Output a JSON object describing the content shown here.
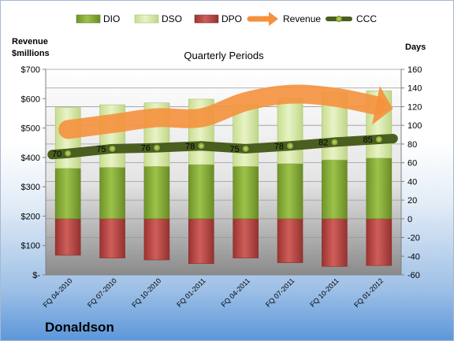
{
  "chart_data": {
    "type": "bar",
    "title": "Quarterly Periods",
    "company": "Donaldson",
    "left_axis_title": [
      "Revenue",
      "$millions"
    ],
    "right_axis_title": "Days",
    "categories": [
      "FQ 04-2010",
      "FQ 07-2010",
      "FQ 10-2010",
      "FQ 01-2011",
      "FQ 04-2011",
      "FQ 07-2011",
      "FQ 10-2011",
      "FQ 01-2012"
    ],
    "left_ticks": [
      "$-",
      "$100",
      "$200",
      "$300",
      "$400",
      "$500",
      "$600",
      "$700"
    ],
    "right_ticks": [
      "-60",
      "-40",
      "-20",
      "0",
      "20",
      "40",
      "60",
      "80",
      "100",
      "120",
      "140",
      "160"
    ],
    "left_range": [
      0,
      700
    ],
    "right_range": [
      -60,
      160
    ],
    "legend": [
      "DIO",
      "DSO",
      "DPO",
      "Revenue",
      "CCC"
    ],
    "legend_position": "top",
    "colors": {
      "DIO": "#8fb33a",
      "DSO": "#dcebb0",
      "DPO": "#c0504d",
      "Revenue": "#f5913d",
      "CCC": "#4a5e20"
    },
    "series": [
      {
        "name": "DIO",
        "axis": "right",
        "values": [
          54,
          55,
          56,
          58,
          56,
          59,
          63,
          65
        ]
      },
      {
        "name": "DSO",
        "axis": "right",
        "values": [
          65,
          67,
          68,
          70,
          66,
          70,
          72,
          72
        ]
      },
      {
        "name": "DPO",
        "axis": "right",
        "values": [
          -39,
          -42,
          -44,
          -48,
          -42,
          -47,
          -51,
          -50
        ]
      },
      {
        "name": "Revenue",
        "axis": "left",
        "values": [
          495,
          515,
          535,
          535,
          590,
          615,
          605,
          575
        ]
      },
      {
        "name": "CCC",
        "axis": "right",
        "values": [
          70,
          75,
          76,
          78,
          75,
          78,
          82,
          85
        ]
      }
    ],
    "ccc_labels": [
      "70",
      "75",
      "76",
      "78",
      "75",
      "78",
      "82",
      "85"
    ],
    "gridlines": true
  }
}
